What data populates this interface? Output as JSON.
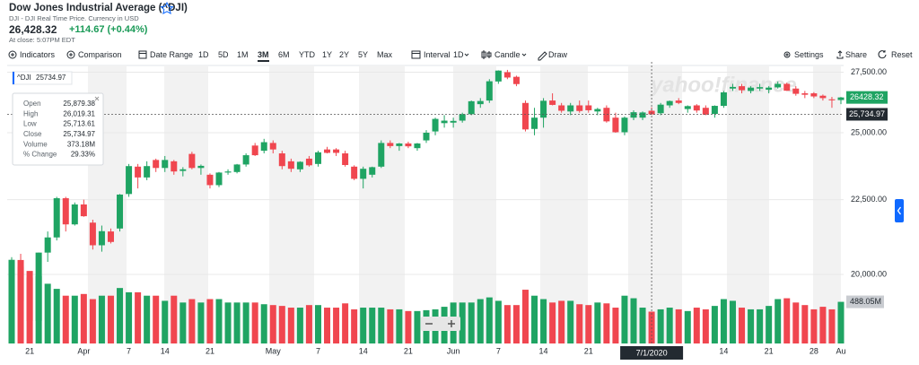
{
  "header": {
    "title": "Dow Jones Industrial Average (^DJI)",
    "subtitle": "DJI - DJI Real Time Price. Currency in USD",
    "price": "26,428.32",
    "change": "+114.67 (+0.44%)",
    "status": "At close: 5:07PM EDT"
  },
  "toolbar": [
    "Indicators",
    "Comparison",
    "Date Range",
    "1D",
    "5D",
    "1M",
    "3M",
    "6M",
    "YTD",
    "1Y",
    "2Y",
    "5Y",
    "Max",
    "Interval",
    "1D",
    "Candle",
    "Draw",
    "Settings",
    "Share",
    "Reset"
  ],
  "chart_data": {
    "type": "candlestick",
    "log_scale": true,
    "grid": true,
    "watermark": "yahoo!finance",
    "legend": {
      "name": "^DJI",
      "value_label": "25734.97"
    },
    "up_color": "#1fa463",
    "down_color": "#f0464f",
    "ylim": [
      17940,
      27950
    ],
    "yticks": [
      {
        "value": 20000,
        "label": "20,000.00"
      },
      {
        "value": 22500,
        "label": "22,500.00"
      },
      {
        "value": 25000,
        "label": "25,000.00"
      },
      {
        "value": 27500,
        "label": "27,500.00"
      }
    ],
    "y2lim": [
      0,
      3300
    ],
    "categories": [
      null,
      null,
      "21",
      null,
      null,
      null,
      null,
      null,
      "Apr",
      null,
      null,
      null,
      null,
      "7",
      null,
      null,
      null,
      "14",
      null,
      null,
      null,
      null,
      "21",
      null,
      null,
      null,
      null,
      null,
      null,
      "May",
      null,
      null,
      null,
      null,
      "7",
      null,
      null,
      null,
      null,
      "14",
      null,
      null,
      null,
      null,
      "21",
      null,
      null,
      null,
      null,
      "Jun",
      null,
      null,
      null,
      null,
      "7",
      null,
      null,
      null,
      null,
      "14",
      null,
      null,
      null,
      null,
      "21",
      null,
      null,
      null,
      null,
      null,
      null,
      null,
      null,
      null,
      null,
      null,
      null,
      null,
      null,
      "14",
      null,
      null,
      null,
      null,
      "21",
      null,
      null,
      null,
      null,
      "28",
      null,
      null,
      "Au"
    ],
    "open": [
      19610,
      20460,
      19900,
      18590,
      20700,
      21200,
      22550,
      21640,
      22330,
      21700,
      20940,
      21400,
      21500,
      22700,
      23700,
      23300,
      23950,
      23650,
      23900,
      23540,
      24180,
      23650,
      23400,
      23020,
      23480,
      23500,
      23780,
      24500,
      24300,
      24600,
      24200,
      23900,
      23600,
      24000,
      23800,
      24350,
      24350,
      24200,
      23700,
      23250,
      23400,
      23700,
      24600,
      24480,
      24580,
      24400,
      24700,
      25050,
      25380,
      25400,
      25480,
      25740,
      26150,
      26300,
      27100,
      27500,
      27300,
      26200,
      25150,
      25600,
      26300,
      26100,
      25850,
      26100,
      26100,
      25850,
      26000,
      25600,
      25020,
      25600,
      25600,
      25879.38,
      25780,
      26100,
      26300,
      25950,
      26100,
      26000,
      25750,
      26080,
      26800,
      26900,
      26700,
      26800,
      26750,
      26850,
      27000,
      26800,
      26600,
      26600,
      26500,
      26350,
      26320
    ],
    "high": [
      20550,
      20660,
      20100,
      20700,
      21400,
      22600,
      22600,
      22400,
      22500,
      21800,
      21600,
      21500,
      22700,
      23800,
      23800,
      23900,
      24000,
      24100,
      23950,
      23680,
      24260,
      23780,
      23450,
      23500,
      23600,
      23800,
      24200,
      24600,
      24760,
      24700,
      24300,
      24000,
      23900,
      24100,
      24300,
      24450,
      24400,
      24300,
      23750,
      23700,
      23700,
      24700,
      24700,
      24600,
      24650,
      24600,
      25100,
      25600,
      25700,
      25600,
      25800,
      26300,
      26400,
      27200,
      27580,
      27600,
      27350,
      26300,
      26000,
      26400,
      26600,
      26200,
      26200,
      26300,
      26300,
      26000,
      26100,
      25800,
      25650,
      25900,
      25850,
      26019.31,
      26200,
      26300,
      26400,
      26100,
      26150,
      26100,
      26100,
      26700,
      27000,
      27000,
      26900,
      27000,
      26900,
      27100,
      27050,
      26900,
      26700,
      26650,
      26550,
      26450,
      26450
    ],
    "low": [
      19100,
      18750,
      18210,
      18400,
      20400,
      21100,
      21400,
      21600,
      21900,
      20800,
      20730,
      21000,
      21400,
      22600,
      22900,
      23200,
      23500,
      23500,
      23400,
      23340,
      23600,
      23400,
      22900,
      22950,
      23400,
      23450,
      23700,
      24100,
      24200,
      24200,
      23600,
      23500,
      23500,
      23700,
      23700,
      24200,
      24100,
      23700,
      23200,
      22900,
      23300,
      23650,
      24400,
      24300,
      24400,
      24300,
      24600,
      24900,
      25200,
      25200,
      25400,
      25700,
      26000,
      26200,
      27000,
      27200,
      26900,
      25050,
      24900,
      25200,
      26100,
      25800,
      25700,
      25800,
      25800,
      25700,
      25400,
      25000,
      24900,
      25500,
      25500,
      25713.61,
      25700,
      26000,
      26150,
      25800,
      25800,
      25700,
      25600,
      26000,
      26700,
      26600,
      26600,
      26700,
      26600,
      26800,
      26700,
      26500,
      26400,
      26400,
      26300,
      26000,
      26150
    ],
    "close": [
      20460,
      19170,
      18590,
      20700,
      21200,
      22550,
      21640,
      22330,
      21920,
      20940,
      21410,
      21050,
      22680,
      23720,
      23300,
      23720,
      23650,
      23950,
      23520,
      23600,
      23650,
      23730,
      23020,
      23480,
      23520,
      23780,
      24130,
      24130,
      24630,
      24350,
      23720,
      23620,
      23880,
      23750,
      24240,
      24220,
      24220,
      23760,
      23250,
      23620,
      23680,
      24600,
      24480,
      24580,
      24470,
      24580,
      25000,
      25550,
      25480,
      25470,
      25740,
      26270,
      26280,
      27110,
      27570,
      27270,
      26990,
      25130,
      25600,
      26290,
      26120,
      25880,
      26100,
      25870,
      25900,
      25950,
      25450,
      25020,
      25600,
      25820,
      25810,
      25734.97,
      26130,
      26280,
      26200,
      26070,
      25890,
      25720,
      26080,
      26640,
      26870,
      26730,
      26840,
      26860,
      26840,
      27000,
      26710,
      26580,
      26540,
      26470,
      26400,
      26310,
      26428.32
    ],
    "volume": [
      980,
      900,
      850,
      790,
      700,
      640,
      560,
      560,
      580,
      520,
      560,
      560,
      650,
      600,
      600,
      560,
      560,
      500,
      560,
      480,
      520,
      480,
      520,
      520,
      480,
      480,
      480,
      480,
      460,
      450,
      440,
      420,
      420,
      450,
      450,
      420,
      420,
      470,
      400,
      420,
      420,
      420,
      400,
      400,
      380,
      380,
      390,
      400,
      430,
      480,
      480,
      480,
      520,
      540,
      500,
      450,
      450,
      630,
      560,
      520,
      480,
      500,
      500,
      460,
      450,
      480,
      470,
      420,
      560,
      530,
      420,
      373.18,
      400,
      420,
      400,
      380,
      420,
      400,
      440,
      520,
      500,
      420,
      400,
      400,
      440,
      520,
      530,
      480,
      450,
      400,
      430,
      400,
      488.05
    ],
    "last_label": "26428.32",
    "volume_label": "488.05M",
    "crosshair": {
      "date": "7/1/2020",
      "price": "25,734.97"
    },
    "tooltip": [
      {
        "label": "Open",
        "value": "25,879.38"
      },
      {
        "label": "High",
        "value": "26,019.31"
      },
      {
        "label": "Low",
        "value": "25,713.61"
      },
      {
        "label": "Close",
        "value": "25,734.97"
      },
      {
        "label": "Volume",
        "value": "373.18M"
      },
      {
        "label": "% Change",
        "value": "29.33%"
      }
    ]
  }
}
